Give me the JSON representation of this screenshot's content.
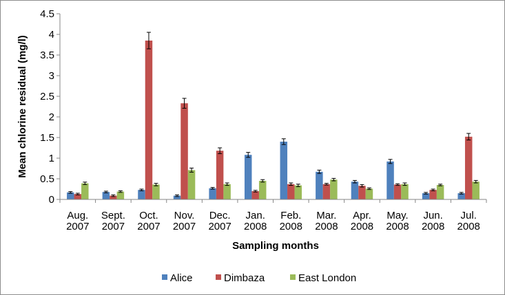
{
  "chart_data": {
    "type": "bar",
    "title": "",
    "xlabel": "Sampling months",
    "ylabel": "Mean chlorine residual (mg/l)",
    "ylim": [
      0,
      4.5
    ],
    "yticks": [
      "0",
      "0.5",
      "1",
      "1.5",
      "2",
      "2.5",
      "3",
      "3.5",
      "4",
      "4.5"
    ],
    "categories": [
      [
        "Aug.",
        "2007"
      ],
      [
        "Sept.",
        "2007"
      ],
      [
        "Oct.",
        "2007"
      ],
      [
        "Nov.",
        "2007"
      ],
      [
        "Dec.",
        "2007"
      ],
      [
        "Jan.",
        "2008"
      ],
      [
        "Feb.",
        "2008"
      ],
      [
        "Mar.",
        "2008"
      ],
      [
        "Apr.",
        "2008"
      ],
      [
        "May.",
        "2008"
      ],
      [
        "Jun.",
        "2008"
      ],
      [
        "Jul.",
        "2008"
      ]
    ],
    "series": [
      {
        "name": "Alice",
        "color": "#4f81bd",
        "values": [
          0.17,
          0.18,
          0.23,
          0.09,
          0.27,
          1.08,
          1.4,
          0.67,
          0.43,
          0.92,
          0.15,
          0.15
        ],
        "errors": [
          0.02,
          0.02,
          0.02,
          0.02,
          0.02,
          0.06,
          0.07,
          0.04,
          0.03,
          0.05,
          0.02,
          0.02
        ]
      },
      {
        "name": "Dimbaza",
        "color": "#c0504d",
        "values": [
          0.13,
          0.09,
          3.85,
          2.33,
          1.18,
          0.2,
          0.37,
          0.37,
          0.33,
          0.36,
          0.23,
          1.52
        ],
        "errors": [
          0.02,
          0.02,
          0.2,
          0.12,
          0.07,
          0.02,
          0.03,
          0.02,
          0.03,
          0.02,
          0.02,
          0.08
        ]
      },
      {
        "name": "East London",
        "color": "#9bbb59",
        "values": [
          0.39,
          0.19,
          0.36,
          0.71,
          0.37,
          0.45,
          0.34,
          0.48,
          0.26,
          0.37,
          0.35,
          0.43
        ],
        "errors": [
          0.03,
          0.02,
          0.03,
          0.05,
          0.03,
          0.03,
          0.03,
          0.03,
          0.02,
          0.03,
          0.02,
          0.03
        ]
      }
    ],
    "legend_position": "bottom",
    "grid": false,
    "error_bars": true
  }
}
